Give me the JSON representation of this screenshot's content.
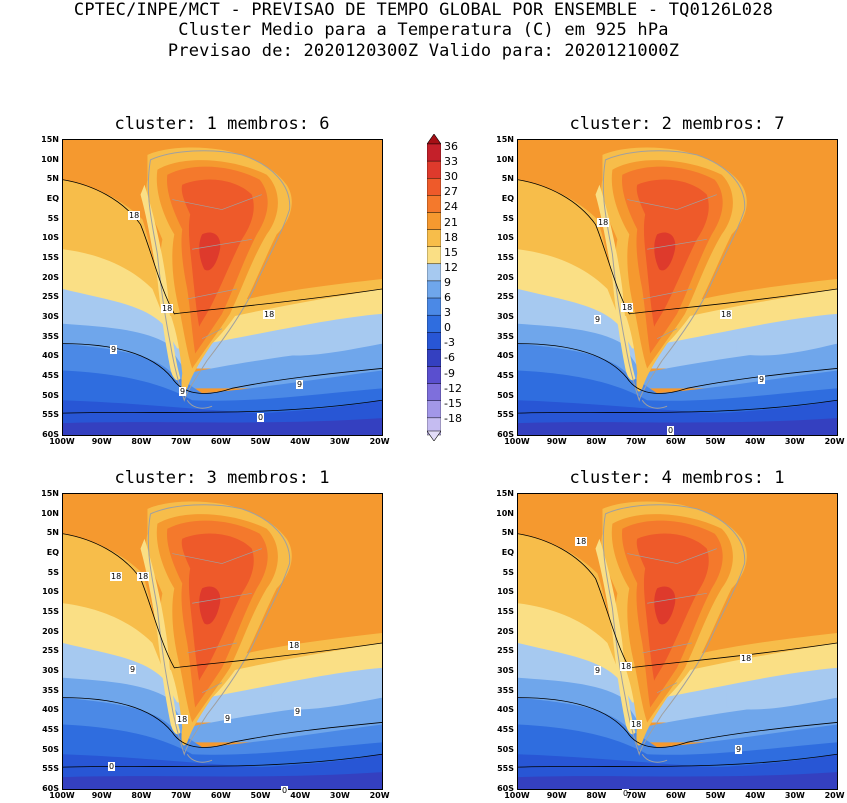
{
  "header": {
    "line1": "CPTEC/INPE/MCT - PREVISAO DE TEMPO GLOBAL POR ENSEMBLE - TQ0126L028",
    "line2": "Cluster Medio para a Temperatura (C) em 925 hPa",
    "line3": "Previsao de: 2020120300Z   Valido para: 2020121000Z"
  },
  "lat_labels": [
    "15N",
    "10N",
    "5N",
    "EQ",
    "5S",
    "10S",
    "15S",
    "20S",
    "25S",
    "30S",
    "35S",
    "40S",
    "45S",
    "50S",
    "55S",
    "60S"
  ],
  "lon_labels": [
    "100W",
    "90W",
    "80W",
    "70W",
    "60W",
    "50W",
    "40W",
    "30W",
    "20W"
  ],
  "colorbar": {
    "levels": [
      "36",
      "33",
      "30",
      "27",
      "24",
      "21",
      "18",
      "15",
      "12",
      "9",
      "6",
      "3",
      "0",
      "-3",
      "-6",
      "-9",
      "-12",
      "-15",
      "-18"
    ],
    "colors": [
      "#a50f15",
      "#c4202a",
      "#de3a2c",
      "#ee5a2a",
      "#f4792c",
      "#f5992f",
      "#f7bd4a",
      "#fadf85",
      "#a6c9f0",
      "#6fa6eb",
      "#4b89e6",
      "#2f6ddf",
      "#2856d5",
      "#3440c0",
      "#5a4fcf",
      "#7e6fdc",
      "#a297e8",
      "#c5bcf1",
      "#e2dcf8"
    ]
  },
  "panels": [
    {
      "title": "cluster: 1   membros: 6",
      "labels": [
        "18",
        "18",
        "18",
        "9",
        "9",
        "9",
        "0"
      ]
    },
    {
      "title": "cluster: 2   membros: 7",
      "labels": [
        "18",
        "18",
        "18",
        "9",
        "9",
        "0"
      ]
    },
    {
      "title": "cluster: 3   membros: 1",
      "labels": [
        "18",
        "18",
        "18",
        "18",
        "9",
        "9",
        "9",
        "0",
        "0"
      ]
    },
    {
      "title": "cluster: 4   membros: 1",
      "labels": [
        "18",
        "18",
        "18",
        "18",
        "9",
        "9",
        "0"
      ]
    }
  ]
}
